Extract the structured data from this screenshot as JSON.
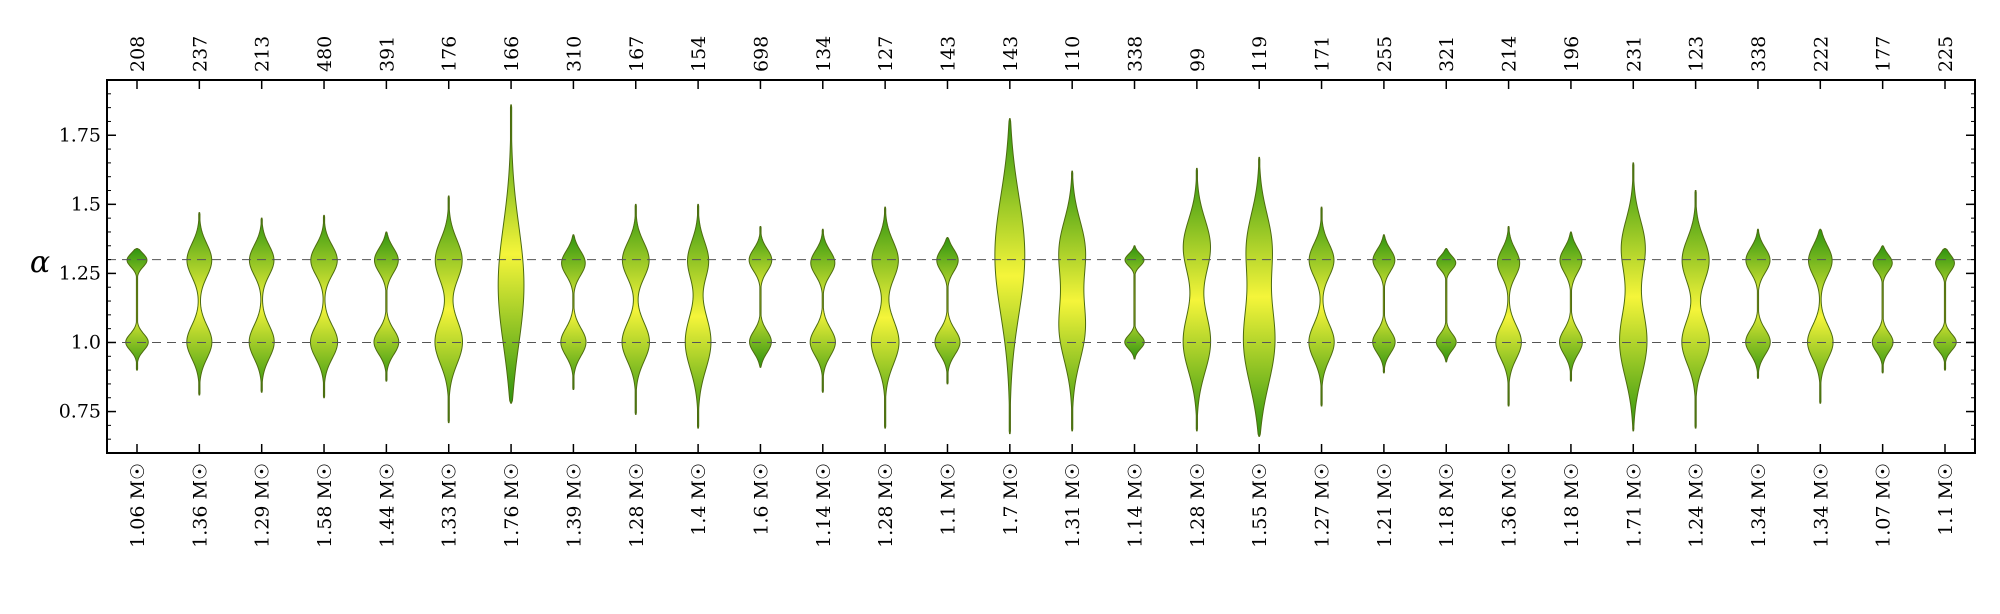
{
  "chart_data": {
    "type": "violin",
    "ylabel": "α",
    "ylim": [
      0.6,
      1.95
    ],
    "yticks": [
      0.75,
      1.0,
      1.25,
      1.5,
      1.75
    ],
    "ytick_labels": [
      "0.75",
      "1.0",
      "1.25",
      "1.5",
      "1.75"
    ],
    "reference_lines": [
      1.0,
      1.3
    ],
    "grid": false,
    "colors": {
      "edge": "#4d6b10",
      "center": "#f5f53a",
      "outer": "#2f9410",
      "axis": "#000000",
      "refline": "#555555"
    },
    "top_labels": [
      "208",
      "237",
      "213",
      "480",
      "391",
      "176",
      "166",
      "310",
      "167",
      "154",
      "698",
      "134",
      "127",
      "143",
      "143",
      "110",
      "338",
      "99",
      "119",
      "171",
      "255",
      "321",
      "214",
      "196",
      "231",
      "123",
      "338",
      "222",
      "177",
      "225"
    ],
    "categories": [
      "1.06 M☉",
      "1.36 M☉",
      "1.29 M☉",
      "1.58 M☉",
      "1.44 M☉",
      "1.33 M☉",
      "1.76 M☉",
      "1.39 M☉",
      "1.28 M☉",
      "1.4 M☉",
      "1.6 M☉",
      "1.14 M☉",
      "1.28 M☉",
      "1.1 M☉",
      "1.7 M☉",
      "1.31 M☉",
      "1.14 M☉",
      "1.28 M☉",
      "1.55 M☉",
      "1.27 M☉",
      "1.21 M☉",
      "1.18 M☉",
      "1.36 M☉",
      "1.18 M☉",
      "1.71 M☉",
      "1.24 M☉",
      "1.34 M☉",
      "1.34 M☉",
      "1.07 M☉",
      "1.1 M☉"
    ],
    "violins": [
      {
        "range": [
          0.9,
          1.34
        ],
        "modes": [
          {
            "m": 1.0,
            "w": 12,
            "s": 0.03
          },
          {
            "m": 1.3,
            "w": 12,
            "s": 0.025
          }
        ]
      },
      {
        "range": [
          0.81,
          1.47
        ],
        "modes": [
          {
            "m": 1.0,
            "w": 13,
            "s": 0.06
          },
          {
            "m": 1.3,
            "w": 13,
            "s": 0.06
          }
        ]
      },
      {
        "range": [
          0.82,
          1.45
        ],
        "modes": [
          {
            "m": 1.0,
            "w": 13,
            "s": 0.06
          },
          {
            "m": 1.3,
            "w": 13,
            "s": 0.055
          }
        ]
      },
      {
        "range": [
          0.8,
          1.46
        ],
        "modes": [
          {
            "m": 1.0,
            "w": 14,
            "s": 0.06
          },
          {
            "m": 1.3,
            "w": 14,
            "s": 0.055
          }
        ]
      },
      {
        "range": [
          0.86,
          1.4
        ],
        "modes": [
          {
            "m": 1.0,
            "w": 13,
            "s": 0.045
          },
          {
            "m": 1.3,
            "w": 13,
            "s": 0.045
          }
        ]
      },
      {
        "range": [
          0.71,
          1.53
        ],
        "modes": [
          {
            "m": 1.0,
            "w": 14,
            "s": 0.08
          },
          {
            "m": 1.3,
            "w": 14,
            "s": 0.075
          }
        ]
      },
      {
        "range": [
          0.78,
          1.86
        ],
        "modes": [
          {
            "m": 1.2,
            "w": 13,
            "s": 0.22
          }
        ]
      },
      {
        "range": [
          0.83,
          1.39
        ],
        "modes": [
          {
            "m": 1.0,
            "w": 13,
            "s": 0.05
          },
          {
            "m": 1.29,
            "w": 13,
            "s": 0.045
          }
        ]
      },
      {
        "range": [
          0.74,
          1.5
        ],
        "modes": [
          {
            "m": 1.0,
            "w": 14,
            "s": 0.07
          },
          {
            "m": 1.3,
            "w": 14,
            "s": 0.065
          }
        ]
      },
      {
        "range": [
          0.69,
          1.5
        ],
        "modes": [
          {
            "m": 1.0,
            "w": 13,
            "s": 0.1
          },
          {
            "m": 1.3,
            "w": 11,
            "s": 0.07
          }
        ]
      },
      {
        "range": [
          0.91,
          1.42
        ],
        "modes": [
          {
            "m": 1.0,
            "w": 12,
            "s": 0.04
          },
          {
            "m": 1.3,
            "w": 12,
            "s": 0.04
          }
        ]
      },
      {
        "range": [
          0.82,
          1.41
        ],
        "modes": [
          {
            "m": 1.0,
            "w": 13,
            "s": 0.05
          },
          {
            "m": 1.29,
            "w": 13,
            "s": 0.045
          }
        ]
      },
      {
        "range": [
          0.69,
          1.49
        ],
        "modes": [
          {
            "m": 1.0,
            "w": 14,
            "s": 0.08
          },
          {
            "m": 1.3,
            "w": 14,
            "s": 0.07
          }
        ]
      },
      {
        "range": [
          0.85,
          1.38
        ],
        "modes": [
          {
            "m": 1.0,
            "w": 13,
            "s": 0.045
          },
          {
            "m": 1.3,
            "w": 12,
            "s": 0.04
          }
        ]
      },
      {
        "range": [
          0.67,
          1.81
        ],
        "modes": [
          {
            "m": 1.32,
            "w": 15,
            "s": 0.22
          }
        ]
      },
      {
        "range": [
          0.68,
          1.62
        ],
        "modes": [
          {
            "m": 1.05,
            "w": 13,
            "s": 0.12
          },
          {
            "m": 1.34,
            "w": 13,
            "s": 0.11
          }
        ]
      },
      {
        "range": [
          0.94,
          1.35
        ],
        "modes": [
          {
            "m": 1.0,
            "w": 11,
            "s": 0.025
          },
          {
            "m": 1.3,
            "w": 11,
            "s": 0.022
          }
        ]
      },
      {
        "range": [
          0.68,
          1.63
        ],
        "modes": [
          {
            "m": 1.0,
            "w": 14,
            "s": 0.11
          },
          {
            "m": 1.35,
            "w": 14,
            "s": 0.1
          }
        ]
      },
      {
        "range": [
          0.66,
          1.67
        ],
        "modes": [
          {
            "m": 1.0,
            "w": 16,
            "s": 0.16
          },
          {
            "m": 1.36,
            "w": 12,
            "s": 0.12
          }
        ]
      },
      {
        "range": [
          0.77,
          1.49
        ],
        "modes": [
          {
            "m": 1.0,
            "w": 13,
            "s": 0.065
          },
          {
            "m": 1.3,
            "w": 13,
            "s": 0.06
          }
        ]
      },
      {
        "range": [
          0.89,
          1.39
        ],
        "modes": [
          {
            "m": 1.0,
            "w": 12,
            "s": 0.04
          },
          {
            "m": 1.3,
            "w": 12,
            "s": 0.04
          }
        ]
      },
      {
        "range": [
          0.93,
          1.34
        ],
        "modes": [
          {
            "m": 1.0,
            "w": 11,
            "s": 0.03
          },
          {
            "m": 1.29,
            "w": 11,
            "s": 0.025
          }
        ]
      },
      {
        "range": [
          0.77,
          1.42
        ],
        "modes": [
          {
            "m": 1.0,
            "w": 13,
            "s": 0.06
          },
          {
            "m": 1.29,
            "w": 12,
            "s": 0.05
          }
        ]
      },
      {
        "range": [
          0.86,
          1.4
        ],
        "modes": [
          {
            "m": 1.0,
            "w": 12,
            "s": 0.045
          },
          {
            "m": 1.3,
            "w": 12,
            "s": 0.045
          }
        ]
      },
      {
        "range": [
          0.68,
          1.65
        ],
        "modes": [
          {
            "m": 1.0,
            "w": 14,
            "s": 0.13
          },
          {
            "m": 1.35,
            "w": 12,
            "s": 0.1
          }
        ]
      },
      {
        "range": [
          0.69,
          1.55
        ],
        "modes": [
          {
            "m": 1.0,
            "w": 14,
            "s": 0.08
          },
          {
            "m": 1.3,
            "w": 14,
            "s": 0.08
          }
        ]
      },
      {
        "range": [
          0.87,
          1.41
        ],
        "modes": [
          {
            "m": 1.0,
            "w": 13,
            "s": 0.045
          },
          {
            "m": 1.3,
            "w": 13,
            "s": 0.045
          }
        ]
      },
      {
        "range": [
          0.78,
          1.41
        ],
        "modes": [
          {
            "m": 1.0,
            "w": 13,
            "s": 0.06
          },
          {
            "m": 1.3,
            "w": 13,
            "s": 0.055
          }
        ]
      },
      {
        "range": [
          0.89,
          1.35
        ],
        "modes": [
          {
            "m": 1.0,
            "w": 11,
            "s": 0.035
          },
          {
            "m": 1.29,
            "w": 11,
            "s": 0.03
          }
        ]
      },
      {
        "range": [
          0.9,
          1.34
        ],
        "modes": [
          {
            "m": 1.0,
            "w": 12,
            "s": 0.03
          },
          {
            "m": 1.29,
            "w": 11,
            "s": 0.03
          }
        ]
      }
    ]
  }
}
